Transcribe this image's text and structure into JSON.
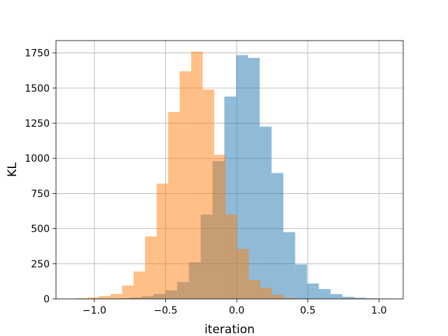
{
  "chart_data": {
    "type": "bar",
    "subtype": "overlapping histogram",
    "xlabel": "iteration",
    "ylabel": "KL",
    "xlim": [
      -1.27,
      1.17
    ],
    "ylim": [
      0,
      1838
    ],
    "grid": true,
    "xticks": [
      -1.0,
      -0.5,
      0.0,
      0.5,
      1.0
    ],
    "xtick_labels": [
      "−1.0",
      "−0.5",
      "0.0",
      "0.5",
      "1.0"
    ],
    "yticks": [
      0,
      250,
      500,
      750,
      1000,
      1250,
      1500,
      1750
    ],
    "ytick_labels": [
      "0",
      "250",
      "500",
      "750",
      "1000",
      "1250",
      "1500",
      "1750"
    ],
    "series": [
      {
        "color": "#1f77b4",
        "alpha": 0.5,
        "bin_edges": [
          -1.0,
          -0.917,
          -0.834,
          -0.751,
          -0.668,
          -0.585,
          -0.502,
          -0.419,
          -0.336,
          -0.253,
          -0.17,
          -0.087,
          -0.004,
          0.079,
          0.162,
          0.245,
          0.328,
          0.411,
          0.494,
          0.577,
          0.66,
          0.743,
          0.826,
          0.909,
          0.992,
          1.075
        ],
        "counts": [
          2,
          2,
          5,
          10,
          18,
          35,
          60,
          120,
          260,
          600,
          980,
          1440,
          1735,
          1715,
          1225,
          895,
          475,
          245,
          110,
          70,
          35,
          15,
          8,
          4,
          2
        ]
      },
      {
        "color": "#ff7f0e",
        "alpha": 0.5,
        "bin_edges": [
          -1.13,
          -1.049,
          -0.968,
          -0.887,
          -0.806,
          -0.725,
          -0.644,
          -0.563,
          -0.482,
          -0.401,
          -0.32,
          -0.239,
          -0.158,
          -0.077,
          0.004,
          0.085,
          0.166,
          0.247,
          0.328,
          0.409
        ],
        "counts": [
          5,
          10,
          20,
          35,
          95,
          195,
          445,
          820,
          1330,
          1620,
          1760,
          1490,
          1025,
          600,
          355,
          135,
          80,
          30,
          8
        ]
      }
    ]
  }
}
